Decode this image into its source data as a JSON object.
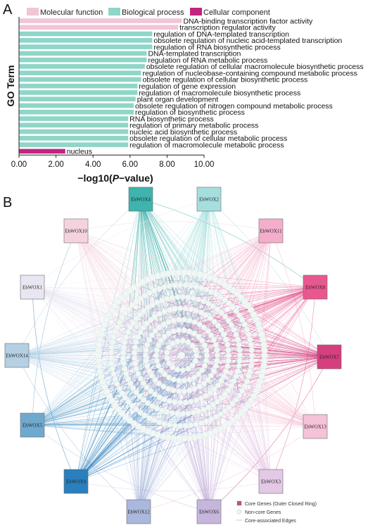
{
  "panel_a": {
    "letter": "A",
    "chart_data": {
      "type": "bar",
      "orientation": "horizontal",
      "xlabel_prefix": "−log10(",
      "xlabel_italic": "P",
      "xlabel_suffix": "−value)",
      "ylabel": "GO Term",
      "xlim": [
        0,
        10
      ],
      "xticks": [
        "0.00",
        "2.00",
        "4.00",
        "6.00",
        "8.00",
        "10.00"
      ],
      "legend": [
        {
          "name": "Molecular function",
          "color": "#f2c4d8"
        },
        {
          "name": "Biological process",
          "color": "#8fd6c8"
        },
        {
          "name": "Cellular component",
          "color": "#c2247e"
        }
      ],
      "legend_position": "top",
      "bars": [
        {
          "term": "DNA-binding transcription factor activity",
          "value": 8.8,
          "group": 0
        },
        {
          "term": "transcription regulator activity",
          "value": 8.6,
          "group": 0
        },
        {
          "term": "regulation of DNA-templated transcription",
          "value": 7.2,
          "group": 1
        },
        {
          "term": "obsolete regulation of nucleic acid-templated transcription",
          "value": 7.2,
          "group": 1
        },
        {
          "term": "regulation of RNA biosynthetic process",
          "value": 7.2,
          "group": 1
        },
        {
          "term": "DNA-templated transcription",
          "value": 6.9,
          "group": 1
        },
        {
          "term": "regulation of RNA metabolic process",
          "value": 6.9,
          "group": 1
        },
        {
          "term": "obsolete regulation of cellular macromolecule biosynthetic process",
          "value": 6.8,
          "group": 1
        },
        {
          "term": "regulation of nucleobase-containing compound metabolic process",
          "value": 6.6,
          "group": 1
        },
        {
          "term": "obsolete regulation of cellular biosynthetic process",
          "value": 6.6,
          "group": 1
        },
        {
          "term": "regulation of gene expression",
          "value": 6.4,
          "group": 1
        },
        {
          "term": "regulation of macromolecule biosynthetic process",
          "value": 6.4,
          "group": 1
        },
        {
          "term": "plant organ development",
          "value": 6.3,
          "group": 1
        },
        {
          "term": "obsolete regulation of nitrogen compound metabolic process",
          "value": 6.2,
          "group": 1
        },
        {
          "term": "regulation of biosynthetic process",
          "value": 6.2,
          "group": 1
        },
        {
          "term": "RNA biosynthetic process",
          "value": 5.9,
          "group": 1
        },
        {
          "term": "regulation of primary metabolic process",
          "value": 5.9,
          "group": 1
        },
        {
          "term": "nucleic acid biosynthetic process",
          "value": 5.9,
          "group": 1
        },
        {
          "term": "obsolete regulation of cellular metabolic process",
          "value": 5.9,
          "group": 1
        },
        {
          "term": "regulation of macromolecule metabolic process",
          "value": 5.9,
          "group": 1
        },
        {
          "term": "nucleus",
          "value": 2.5,
          "group": 2
        }
      ]
    }
  },
  "panel_b": {
    "letter": "B",
    "nodes": [
      {
        "label": "EhWOX4",
        "color": "#3fb3ad"
      },
      {
        "label": "EhWOX2",
        "color": "#a6dede"
      },
      {
        "label": "EhWOX11",
        "color": "#f4aecb"
      },
      {
        "label": "EhWOX8",
        "color": "#e8588f"
      },
      {
        "label": "EhWOX7",
        "color": "#d63f7d"
      },
      {
        "label": "EhWOX13",
        "color": "#f5c2d7"
      },
      {
        "label": "EhWOX3",
        "color": "#e3c9e6"
      },
      {
        "label": "EhWOX6",
        "color": "#c6b6dc"
      },
      {
        "label": "EhWOX12",
        "color": "#aab8dd"
      },
      {
        "label": "EhWOX9",
        "color": "#2b7fbd"
      },
      {
        "label": "EhWOX5",
        "color": "#6fa9cf"
      },
      {
        "label": "EhWOX14",
        "color": "#b5cfe3"
      },
      {
        "label": "EhWOX1",
        "color": "#e9e6f2"
      },
      {
        "label": "EhWOX10",
        "color": "#f4d3df"
      }
    ],
    "legend": [
      {
        "name": "Core Genes (Outer Closed Ring)",
        "color": "#b8527e"
      },
      {
        "name": "Non-core Genes",
        "color": "#f0f6f4"
      },
      {
        "name": "Core-associated Edges",
        "color": "#bcbcbc"
      }
    ]
  }
}
